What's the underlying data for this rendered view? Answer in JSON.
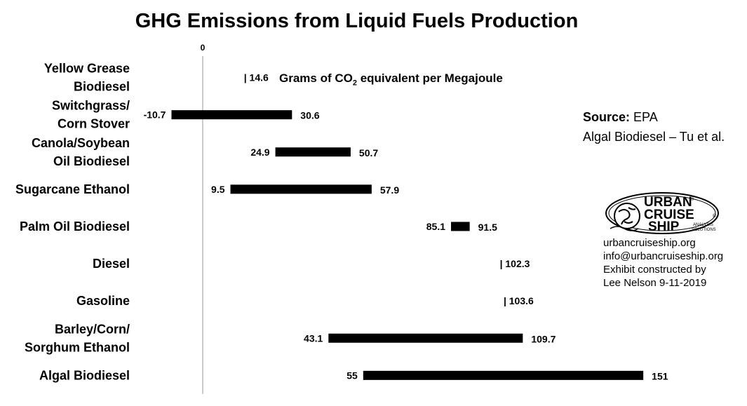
{
  "chart_data": {
    "type": "range-bar",
    "title": "GHG Emissions from Liquid Fuels Production",
    "unit_note_prefix": "Grams of CO",
    "unit_note_sub": "2",
    "unit_note_suffix": " equivalent per Megajoule",
    "zero_label": "0",
    "categories": [
      "Yellow Grease Biodiesel",
      "Switchgrass/ Corn Stover",
      "Canola/Soybean Oil Biodiesel",
      "Sugarcane Ethanol",
      "Palm Oil Biodiesel",
      "Diesel",
      "Gasoline",
      "Barley/Corn/ Sorghum Ethanol",
      "Algal Biodiesel"
    ],
    "category_lines": [
      [
        "Yellow Grease",
        "Biodiesel"
      ],
      [
        "Switchgrass/",
        "Corn Stover"
      ],
      [
        "Canola/Soybean",
        "Oil Biodiesel"
      ],
      [
        "Sugarcane Ethanol"
      ],
      [
        "Palm Oil Biodiesel"
      ],
      [
        "Diesel"
      ],
      [
        "Gasoline"
      ],
      [
        "Barley/Corn/",
        "Sorghum Ethanol"
      ],
      [
        "Algal Biodiesel"
      ]
    ],
    "ranges": [
      {
        "low": null,
        "high": 14.6,
        "low_label": "",
        "high_label": "| 14.6"
      },
      {
        "low": -10.7,
        "high": 30.6,
        "low_label": "-10.7",
        "high_label": "30.6"
      },
      {
        "low": 24.9,
        "high": 50.7,
        "low_label": "24.9",
        "high_label": "50.7"
      },
      {
        "low": 9.5,
        "high": 57.9,
        "low_label": "9.5",
        "high_label": "57.9"
      },
      {
        "low": 85.1,
        "high": 91.5,
        "low_label": "85.1",
        "high_label": "91.5"
      },
      {
        "low": null,
        "high": 102.3,
        "low_label": "",
        "high_label": "| 102.3"
      },
      {
        "low": null,
        "high": 103.6,
        "low_label": "",
        "high_label": "| 103.6"
      },
      {
        "low": 43.1,
        "high": 109.7,
        "low_label": "43.1",
        "high_label": "109.7"
      },
      {
        "low": 55,
        "high": 151,
        "low_label": "55",
        "high_label": "151"
      }
    ]
  },
  "source": {
    "label": "Source:",
    "line1": " EPA",
    "line2": "Algal Biodiesel – Tu et al."
  },
  "logo": {
    "line1": "URBAN",
    "line2": "CRUISE",
    "line3": "SHIP",
    "tag1": "ANALYSIS",
    "tag2": "SOLUTIONS",
    "reg": "®"
  },
  "contact": {
    "website": "urbancruiseship.org",
    "email": "info@urbancruiseship.org",
    "credit_line1": "Exhibit constructed by",
    "credit_line2": "Lee Nelson 9-11-2019"
  }
}
